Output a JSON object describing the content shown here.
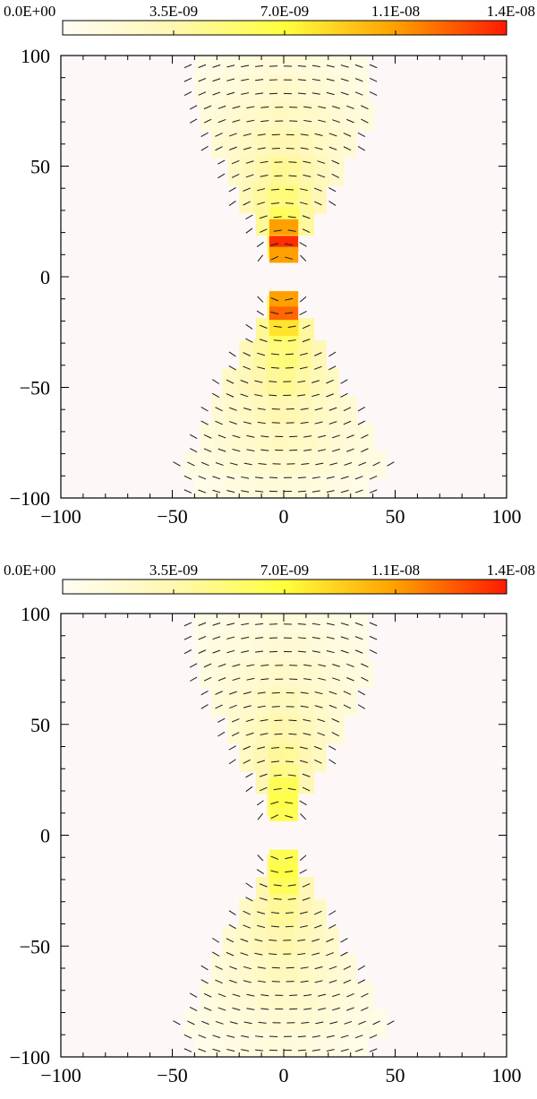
{
  "chart_data": [
    {
      "type": "heatmap",
      "colorbar": {
        "tick_labels": [
          "0.0E+00",
          "3.5E-09",
          "7.0E-09",
          "1.1E-08",
          "1.4E-08"
        ],
        "range": [
          0,
          1.4e-08
        ],
        "colors": [
          "#fffdf5",
          "#fff7b0",
          "#ffff3c",
          "#ffa000",
          "#ff1a00"
        ]
      },
      "xlim": [
        -100,
        100
      ],
      "ylim": [
        -100,
        100
      ],
      "x_ticks": [
        "−100",
        "−50",
        "0",
        "50",
        "100"
      ],
      "y_ticks": [
        "−100",
        "−50",
        "0",
        "50",
        "100"
      ],
      "background_color": "#fdf8f7",
      "cell_size": 12.5,
      "rows": [
        {
          "y": 97.5,
          "xmin": -40,
          "xmax": 40,
          "peak": 1.6e-09
        },
        {
          "y": 85,
          "xmin": -40,
          "xmax": 40,
          "peak": 2.2e-09
        },
        {
          "y": 72.5,
          "xmin": -37.5,
          "xmax": 37.5,
          "peak": 2.8e-09
        },
        {
          "y": 60,
          "xmin": -32.5,
          "xmax": 32.5,
          "peak": 3.6e-09
        },
        {
          "y": 47.5,
          "xmin": -25,
          "xmax": 25,
          "peak": 4.6e-09
        },
        {
          "y": 35,
          "xmin": -20,
          "xmax": 20,
          "peak": 5.6e-09
        },
        {
          "y": 25,
          "xmin": -12.5,
          "xmax": 12.5,
          "peak": 6.8e-09
        },
        {
          "y": 15,
          "xmin": -7.5,
          "xmax": 7.5,
          "peak": 7.2e-09
        },
        {
          "y": -15,
          "xmin": -7.5,
          "xmax": 7.5,
          "peak": 7.5e-09
        },
        {
          "y": -25,
          "xmin": -12.5,
          "xmax": 12.5,
          "peak": 6.8e-09
        },
        {
          "y": -35,
          "xmin": -20,
          "xmax": 20,
          "peak": 5.6e-09
        },
        {
          "y": -47.5,
          "xmin": -27.5,
          "xmax": 27.5,
          "peak": 4.6e-09
        },
        {
          "y": -60,
          "xmin": -32.5,
          "xmax": 32.5,
          "peak": 3.6e-09
        },
        {
          "y": -72.5,
          "xmin": -37.5,
          "xmax": 37.5,
          "peak": 2.8e-09
        },
        {
          "y": -85,
          "xmin": -45,
          "xmax": 45,
          "peak": 2.2e-09
        },
        {
          "y": -95,
          "xmin": -40,
          "xmax": 40,
          "peak": 1.6e-09
        }
      ],
      "hot_cells": [
        {
          "x": 0,
          "y": 22.5,
          "value": 1.05e-08
        },
        {
          "x": 0,
          "y": 15,
          "value": 1.35e-08
        },
        {
          "x": 0,
          "y": 10,
          "value": 1.05e-08
        },
        {
          "x": 0,
          "y": -10,
          "value": 1.05e-08
        },
        {
          "x": 0,
          "y": -17,
          "value": 1.2e-08
        },
        {
          "x": 0,
          "y": -23,
          "value": 8e-09
        }
      ],
      "vectors": "polarization-segments-tangential"
    },
    {
      "type": "heatmap",
      "colorbar": {
        "tick_labels": [
          "0.0E+00",
          "3.5E-09",
          "7.0E-09",
          "1.1E-08",
          "1.4E-08"
        ],
        "range": [
          0,
          1.4e-08
        ],
        "colors": [
          "#fffdf5",
          "#fff7b0",
          "#ffff3c",
          "#ffa000",
          "#ff1a00"
        ]
      },
      "xlim": [
        -100,
        100
      ],
      "ylim": [
        -100,
        100
      ],
      "x_ticks": [
        "−100",
        "−50",
        "0",
        "50",
        "100"
      ],
      "y_ticks": [
        "−100",
        "−50",
        "0",
        "50",
        "100"
      ],
      "background_color": "#fdf8f7",
      "cell_size": 12.5,
      "rows": [
        {
          "y": 97.5,
          "xmin": -40,
          "xmax": 40,
          "peak": 1.4e-09
        },
        {
          "y": 85,
          "xmin": -40,
          "xmax": 40,
          "peak": 1.8e-09
        },
        {
          "y": 72.5,
          "xmin": -37.5,
          "xmax": 37.5,
          "peak": 2.4e-09
        },
        {
          "y": 60,
          "xmin": -32.5,
          "xmax": 32.5,
          "peak": 3e-09
        },
        {
          "y": 47.5,
          "xmin": -25,
          "xmax": 25,
          "peak": 3.8e-09
        },
        {
          "y": 35,
          "xmin": -20,
          "xmax": 20,
          "peak": 4.6e-09
        },
        {
          "y": 25,
          "xmin": -12.5,
          "xmax": 12.5,
          "peak": 5.4e-09
        },
        {
          "y": 15,
          "xmin": -7.5,
          "xmax": 7.5,
          "peak": 6e-09
        },
        {
          "y": -15,
          "xmin": -7.5,
          "xmax": 7.5,
          "peak": 6.2e-09
        },
        {
          "y": -25,
          "xmin": -12.5,
          "xmax": 12.5,
          "peak": 5.4e-09
        },
        {
          "y": -35,
          "xmin": -20,
          "xmax": 20,
          "peak": 4.6e-09
        },
        {
          "y": -47.5,
          "xmin": -27.5,
          "xmax": 27.5,
          "peak": 3.8e-09
        },
        {
          "y": -60,
          "xmin": -32.5,
          "xmax": 32.5,
          "peak": 3e-09
        },
        {
          "y": -72.5,
          "xmin": -37.5,
          "xmax": 37.5,
          "peak": 2.4e-09
        },
        {
          "y": -85,
          "xmin": -45,
          "xmax": 45,
          "peak": 1.8e-09
        },
        {
          "y": -95,
          "xmin": -40,
          "xmax": 40,
          "peak": 1.4e-09
        }
      ],
      "hot_cells": [
        {
          "x": 0,
          "y": 22.5,
          "value": 6.3e-09
        },
        {
          "x": 0,
          "y": 15,
          "value": 6.6e-09
        },
        {
          "x": 0,
          "y": 10,
          "value": 6.3e-09
        },
        {
          "x": 0,
          "y": -10,
          "value": 6.3e-09
        },
        {
          "x": 0,
          "y": -17,
          "value": 6.6e-09
        },
        {
          "x": 0,
          "y": -23,
          "value": 6e-09
        }
      ],
      "vectors": "polarization-segments-tangential"
    }
  ]
}
